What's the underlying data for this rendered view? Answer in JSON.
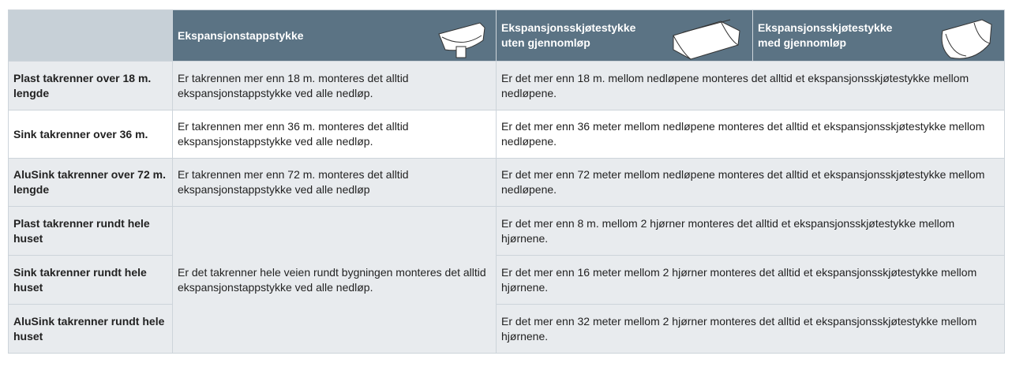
{
  "table": {
    "header": [
      "Ekspansjonstappstykke",
      "Ekspansjonsskjøtestykke uten gjennomløp",
      "Ekspansjonsskjøtestykke med gjennomløp"
    ],
    "rows": [
      {
        "label": "Plast takrenner over 18 m. lengde",
        "cells": [
          "Er takrennen mer enn 18 m. monteres det alltid ekspansjonstappstykke ved alle nedløp.",
          "Er det mer enn 18 m. mellom nedløpene monteres det alltid et ekspansjonsskjøtestykke mellom nedløpene."
        ]
      },
      {
        "label": "Sink takrenner over 36 m.",
        "cells": [
          "Er takrennen mer enn 36 m. monteres det alltid ekspansjonstappstykke ved alle nedløp.",
          "Er det mer enn 36 meter mellom nedløpene monteres det alltid et ekspansjonsskjøtestykke mellom nedløpene."
        ]
      },
      {
        "label": "AluSink takrenner over 72 m. lengde",
        "cells": [
          "Er takrennen mer enn 72 m. monteres det alltid ekspansjonstappstykke ved alle nedløp",
          "Er det mer enn 72 meter mellom nedløpene monteres det alltid et ekspansjonsskjøtestykke mellom nedløpene."
        ]
      },
      {
        "label": "Plast takrenner rundt hele huset",
        "cells": [
          "Er det takrenner hele veien rundt bygningen monteres det alltid ekspansjonstappstykke ved alle nedløp.",
          "Er det mer enn 8 m. mellom 2 hjørner monteres det alltid et ekspansjonsskjøtestykke mellom hjørnene."
        ]
      },
      {
        "label": "Sink takrenner rundt hele huset",
        "cells": [
          "Er det mer enn 16 meter mellom 2 hjørner monteres det alltid et ekspansjonsskjøtestykke mellom hjørnene."
        ]
      },
      {
        "label": "AluSink takrenner rundt hele huset",
        "cells": [
          "Er det mer enn 32 meter mellom 2 hjørner monteres det alltid et ekspansjonsskjøtestykke mellom hjørnene."
        ]
      }
    ]
  }
}
